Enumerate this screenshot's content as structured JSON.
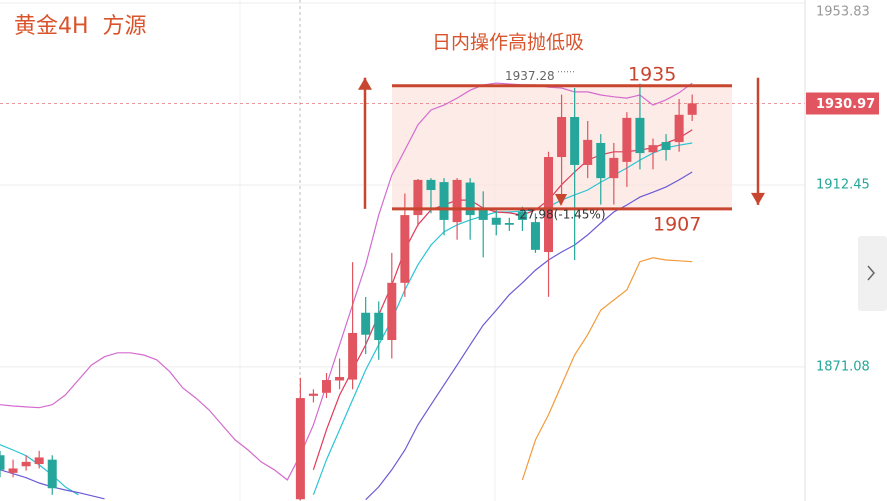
{
  "chart_data": {
    "type": "candlestick",
    "title": "黄金4H  方源",
    "annotation": "日内操作高抛低吸",
    "change_label": "-27.98(-1.45%)",
    "high_label": 1937.28,
    "last_price": 1930.97,
    "last_price_color": "#e0555f",
    "levels": [
      {
        "value": 1935,
        "label": "1935"
      },
      {
        "value": 1907,
        "label": "1907"
      }
    ],
    "level_color": "#c8462f",
    "zone_color": "#fbe3dc",
    "up_color": "#e0555f",
    "down_color": "#26a69a",
    "ylim": [
      1840.6,
      1954.5
    ],
    "yticks": [
      1953.83,
      1912.45,
      1871.08
    ],
    "ytick_colors": [
      "#999999",
      "#26a69a",
      "#26a69a"
    ],
    "grid": true,
    "open": [
      1851,
      1847,
      1848.5,
      1849,
      1850,
      null,
      null,
      null,
      null,
      null,
      null,
      null,
      null,
      null,
      null,
      null,
      null,
      null,
      null,
      null,
      null,
      null,
      null,
      1841,
      1864.5,
      1865.2,
      1868,
      1868.2,
      1883.4,
      1883.4,
      1877.2,
      1890.2,
      1905.6,
      1913.6,
      1913.1,
      1904,
      1913,
      1906.8,
      1905,
      1903.8,
      1906.3,
      1904,
      1897.2,
      1918.8,
      1927.9,
      1917,
      1922,
      1914,
      1917.7,
      1927.7,
      1919.9,
      1922.2,
      1922.2,
      1928.4
    ],
    "high": [
      1852,
      1850,
      1851,
      1852,
      1851,
      null,
      null,
      null,
      null,
      null,
      null,
      null,
      null,
      null,
      null,
      null,
      null,
      null,
      null,
      null,
      null,
      null,
      null,
      1868.6,
      1866,
      1869.7,
      1873,
      1894.9,
      1887,
      1886,
      1897,
      1910.5,
      1913.8,
      1914,
      1914,
      1914,
      1914,
      1911,
      1907,
      1905,
      1907.5,
      1906,
      1920,
      1933,
      1934.5,
      1927,
      1924,
      1922,
      1929,
      1935.5,
      1923,
      1924,
      1932,
      1933
    ],
    "low": [
      1846,
      1846,
      1847.5,
      1848,
      1842,
      null,
      null,
      null,
      null,
      null,
      null,
      null,
      null,
      null,
      null,
      null,
      null,
      null,
      null,
      null,
      null,
      null,
      null,
      1840.8,
      1863,
      1864,
      1866,
      1866,
      1874,
      1872.7,
      1873,
      1887,
      1903,
      1906,
      1901,
      1900,
      1900,
      1896,
      1901,
      1902,
      1902,
      1897,
      1887,
      1908,
      1895.4,
      1914,
      1908,
      1908,
      1912,
      1916,
      1916,
      1918,
      1920,
      1927
    ],
    "close": [
      1847.7,
      1848,
      1849.5,
      1850.5,
      1843.5,
      null,
      null,
      null,
      null,
      null,
      null,
      null,
      null,
      null,
      null,
      null,
      null,
      null,
      null,
      null,
      null,
      null,
      null,
      1864,
      1865,
      1868.1,
      1868.8,
      1878.8,
      1878.4,
      1877.2,
      1890.2,
      1905.6,
      1913.6,
      1911.3,
      1904.5,
      1913.6,
      1905.6,
      1904.5,
      1903.4,
      1903.4,
      1904.5,
      1897.7,
      1918.8,
      1927.9,
      1917,
      1922.7,
      1914,
      1918.6,
      1927.7,
      1919.7,
      1921.5,
      1920.4,
      1928.4,
      1931
    ],
    "lines": [
      {
        "color": "#d36ccf",
        "values": [
          1862.5,
          1862.2,
          1862.0,
          1861.8,
          1862.5,
          1864.7,
          1868.1,
          1871.5,
          1873.4,
          1874.3,
          1874.3,
          1873.8,
          1872.7,
          1870.0,
          1866.3,
          1864.0,
          1861.3,
          1857.9,
          1854.5,
          1852.2,
          1849.5,
          1847.7,
          1845.4,
          1851.1,
          1857.9,
          1867.0,
          1876.1,
          1885.2,
          1894.3,
          1905.6,
          1914.7,
          1920.4,
          1926.1,
          1929.5,
          1930.6,
          1932.2,
          1934.0,
          1935.2,
          1935.6,
          1935.4,
          1935.2,
          1935.2,
          1934.7,
          1934.5,
          1933.6,
          1933.6,
          1932.9,
          1932.5,
          1932.2,
          1932.9,
          1930.6,
          1931.8,
          1933.4,
          1935.6
        ]
      },
      {
        "color": "#2bc4d4",
        "values": [
          1853.4,
          1852.2,
          1850.9,
          1848.8,
          1846.5,
          1843.8,
          1842.0,
          null,
          null,
          null,
          null,
          null,
          null,
          null,
          null,
          null,
          null,
          null,
          null,
          null,
          null,
          null,
          null,
          null,
          1842.0,
          1850.0,
          1856.8,
          1863.6,
          1870.4,
          1876.1,
          1881.8,
          1888.6,
          1894.3,
          1898.8,
          1901.8,
          1903.4,
          1904.5,
          1905.4,
          1906.3,
          1906.3,
          1906.5,
          1906.8,
          1907.5,
          1909.0,
          1910.2,
          1911.3,
          1913.1,
          1914.7,
          1916.3,
          1918.1,
          1919.7,
          1920.9,
          1921.5,
          1922.0
        ]
      },
      {
        "color": "#e03a5a",
        "values": [
          null,
          null,
          null,
          null,
          null,
          null,
          null,
          null,
          null,
          null,
          null,
          null,
          null,
          null,
          null,
          null,
          null,
          null,
          null,
          null,
          null,
          null,
          null,
          null,
          1847.7,
          1856.8,
          1864.7,
          1870.4,
          1876.1,
          1882.9,
          1889.7,
          1897.7,
          1903.4,
          1906.8,
          1907.9,
          1909.0,
          1909.0,
          1907.2,
          1906.3,
          1906.1,
          1905.6,
          1906.8,
          1909.0,
          1912.5,
          1915.4,
          1918.1,
          1919.3,
          1920.0,
          1920.0,
          1920.4,
          1920.9,
          1922.0,
          1923.1,
          1925.0
        ]
      },
      {
        "color": "#6b5bd6",
        "values": [
          1847.7,
          1846.8,
          1845.9,
          1844.7,
          1843.8,
          1843.1,
          1842.5,
          1841.8,
          1841.1,
          null,
          null,
          null,
          null,
          null,
          null,
          null,
          null,
          null,
          null,
          null,
          null,
          null,
          null,
          null,
          null,
          null,
          null,
          null,
          1840.9,
          1843.8,
          1847.7,
          1852.2,
          1857.9,
          1862.5,
          1867.0,
          1871.5,
          1876.1,
          1880.6,
          1884.0,
          1887.5,
          1890.2,
          1893.1,
          1895.4,
          1897.2,
          1898.8,
          1901.1,
          1903.8,
          1906.3,
          1907.9,
          1909.7,
          1910.8,
          1912.0,
          1913.6,
          1915.4
        ]
      },
      {
        "color": "#f39a3c",
        "values": [
          null,
          null,
          null,
          null,
          null,
          null,
          null,
          null,
          null,
          null,
          null,
          null,
          null,
          null,
          null,
          null,
          null,
          null,
          null,
          null,
          null,
          null,
          null,
          null,
          null,
          null,
          null,
          null,
          null,
          null,
          null,
          null,
          null,
          null,
          null,
          null,
          null,
          null,
          null,
          null,
          1845.4,
          1854.5,
          1860.2,
          1867.0,
          1873.8,
          1878.4,
          1884.0,
          1886.3,
          1888.6,
          1895.0,
          1895.9,
          1895.4,
          1895.2,
          1895.0
        ]
      }
    ]
  }
}
